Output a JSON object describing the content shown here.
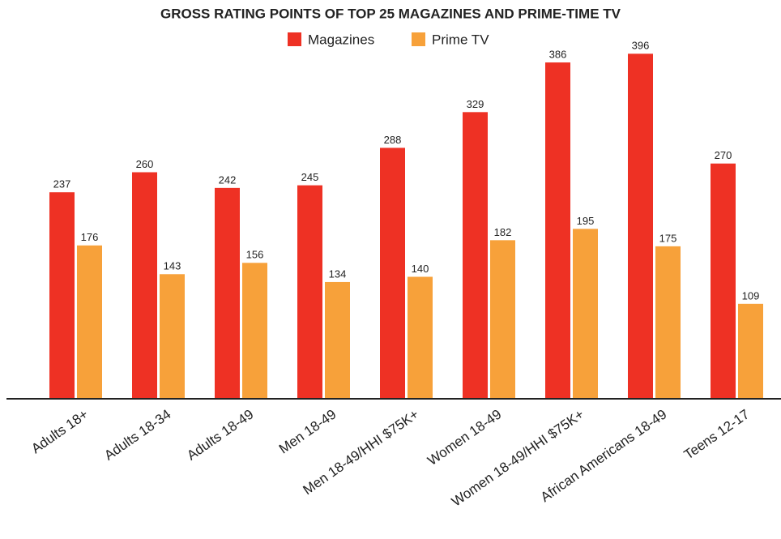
{
  "chart_data": {
    "type": "bar",
    "title": "GROSS RATING POINTS OF TOP 25 MAGAZINES AND PRIME-TIME TV",
    "categories": [
      "Adults 18+",
      "Adults 18-34",
      "Adults 18-49",
      "Men 18-49",
      "Men 18-49/HHI $75K+",
      "Women 18-49",
      "Women 18-49/HHI $75K+",
      "African Americans 18-49",
      "Teens 12-17"
    ],
    "series": [
      {
        "name": "Magazines",
        "color": "#ee3124",
        "values": [
          237,
          260,
          242,
          245,
          288,
          329,
          386,
          396,
          270
        ]
      },
      {
        "name": "Prime TV",
        "color": "#f7a13a",
        "values": [
          176,
          143,
          156,
          134,
          140,
          182,
          195,
          175,
          109
        ]
      }
    ],
    "ylim": [
      0,
      400
    ],
    "grid": false
  }
}
